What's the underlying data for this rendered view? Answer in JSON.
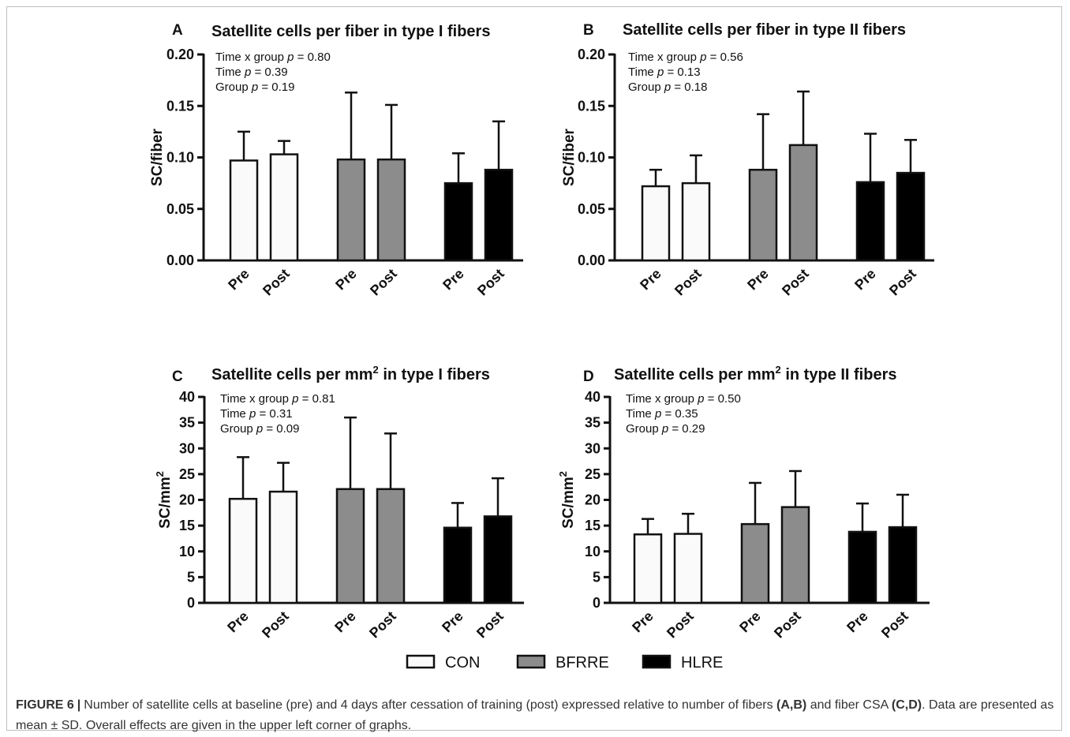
{
  "chart_data": [
    {
      "panel": "A",
      "type": "bar",
      "title": "Satellite cells per fiber in type I fibers",
      "ylabel": "SC/fiber",
      "ylim": [
        0,
        0.2
      ],
      "yticks": [
        "0.00",
        "0.05",
        "0.10",
        "0.15",
        "0.20"
      ],
      "tick_values": [
        0,
        0.05,
        0.1,
        0.15,
        0.2
      ],
      "stats": [
        {
          "pre": "Time x group ",
          "ital": "p",
          "post": " = 0.80"
        },
        {
          "pre": "Time ",
          "ital": "p",
          "post": " = 0.39"
        },
        {
          "pre": "Group ",
          "ital": "p",
          "post": " = 0.19"
        }
      ],
      "categories": [
        "Pre",
        "Post",
        "Pre",
        "Post",
        "Pre",
        "Post"
      ],
      "groups": [
        "CON",
        "CON",
        "BFRRE",
        "BFRRE",
        "HLRE",
        "HLRE"
      ],
      "values": [
        0.097,
        0.103,
        0.098,
        0.098,
        0.075,
        0.088
      ],
      "errors": [
        0.028,
        0.013,
        0.065,
        0.053,
        0.029,
        0.047
      ]
    },
    {
      "panel": "B",
      "type": "bar",
      "title": "Satellite cells per fiber in type II fibers",
      "ylabel": "SC/fiber",
      "ylim": [
        0,
        0.2
      ],
      "yticks": [
        "0.00",
        "0.05",
        "0.10",
        "0.15",
        "0.20"
      ],
      "tick_values": [
        0,
        0.05,
        0.1,
        0.15,
        0.2
      ],
      "stats": [
        {
          "pre": "Time x group ",
          "ital": "p",
          "post": " = 0.56"
        },
        {
          "pre": "Time ",
          "ital": "p",
          "post": " = 0.13"
        },
        {
          "pre": "Group ",
          "ital": "p",
          "post": " = 0.18"
        }
      ],
      "categories": [
        "Pre",
        "Post",
        "Pre",
        "Post",
        "Pre",
        "Post"
      ],
      "groups": [
        "CON",
        "CON",
        "BFRRE",
        "BFRRE",
        "HLRE",
        "HLRE"
      ],
      "values": [
        0.072,
        0.075,
        0.088,
        0.112,
        0.076,
        0.085
      ],
      "errors": [
        0.016,
        0.027,
        0.054,
        0.052,
        0.047,
        0.032
      ]
    },
    {
      "panel": "C",
      "type": "bar",
      "title": "Satellite cells per mm",
      "title_sup": "2",
      "title_rest": " in type I fibers",
      "ylabel": "SC/mm",
      "ylabel_sup": "2",
      "ylim": [
        0,
        40
      ],
      "yticks": [
        "0",
        "5",
        "10",
        "15",
        "20",
        "25",
        "30",
        "35",
        "40"
      ],
      "tick_values": [
        0,
        5,
        10,
        15,
        20,
        25,
        30,
        35,
        40
      ],
      "stats": [
        {
          "pre": "Time x group ",
          "ital": "p",
          "post": " = 0.81"
        },
        {
          "pre": "Time ",
          "ital": "p",
          "post": " = 0.31"
        },
        {
          "pre": "Group ",
          "ital": "p",
          "post": " = 0.09"
        }
      ],
      "categories": [
        "Pre",
        "Post",
        "Pre",
        "Post",
        "Pre",
        "Post"
      ],
      "groups": [
        "CON",
        "CON",
        "BFRRE",
        "BFRRE",
        "HLRE",
        "HLRE"
      ],
      "values": [
        20.2,
        21.6,
        22.1,
        22.1,
        14.6,
        16.8
      ],
      "errors": [
        8.1,
        5.6,
        13.9,
        10.8,
        4.8,
        7.4
      ]
    },
    {
      "panel": "D",
      "type": "bar",
      "title": "Satellite cells per mm",
      "title_sup": "2",
      "title_rest": " in type II fibers",
      "ylabel": "SC/mm",
      "ylabel_sup": "2",
      "ylim": [
        0,
        40
      ],
      "yticks": [
        "0",
        "5",
        "10",
        "15",
        "20",
        "25",
        "30",
        "35",
        "40"
      ],
      "tick_values": [
        0,
        5,
        10,
        15,
        20,
        25,
        30,
        35,
        40
      ],
      "stats": [
        {
          "pre": "Time x group ",
          "ital": "p",
          "post": " = 0.50"
        },
        {
          "pre": "Time ",
          "ital": "p",
          "post": " = 0.35"
        },
        {
          "pre": "Group ",
          "ital": "p",
          "post": " = 0.29"
        }
      ],
      "categories": [
        "Pre",
        "Post",
        "Pre",
        "Post",
        "Pre",
        "Post"
      ],
      "groups": [
        "CON",
        "CON",
        "BFRRE",
        "BFRRE",
        "HLRE",
        "HLRE"
      ],
      "values": [
        13.3,
        13.4,
        15.3,
        18.6,
        13.8,
        14.7
      ],
      "errors": [
        3.0,
        3.9,
        8.0,
        7.0,
        5.5,
        6.3
      ]
    }
  ],
  "legend": [
    {
      "label": "CON",
      "color": "#fafafa"
    },
    {
      "label": "BFRRE",
      "color": "#8c8c8c"
    },
    {
      "label": "HLRE",
      "color": "#000000"
    }
  ],
  "legend_position": "bottom-center",
  "caption": {
    "label": "FIGURE 6",
    "sep": "|",
    "text1": "Number of satellite cells at baseline (pre) and 4 days after cessation of training (post) expressed relative to number of fibers ",
    "ref1": "(A,B)",
    "text2": " and fiber CSA ",
    "ref2": "(C,D)",
    "text3": ". Data are presented as mean ± SD. Overall effects are given in the upper left corner of graphs."
  }
}
